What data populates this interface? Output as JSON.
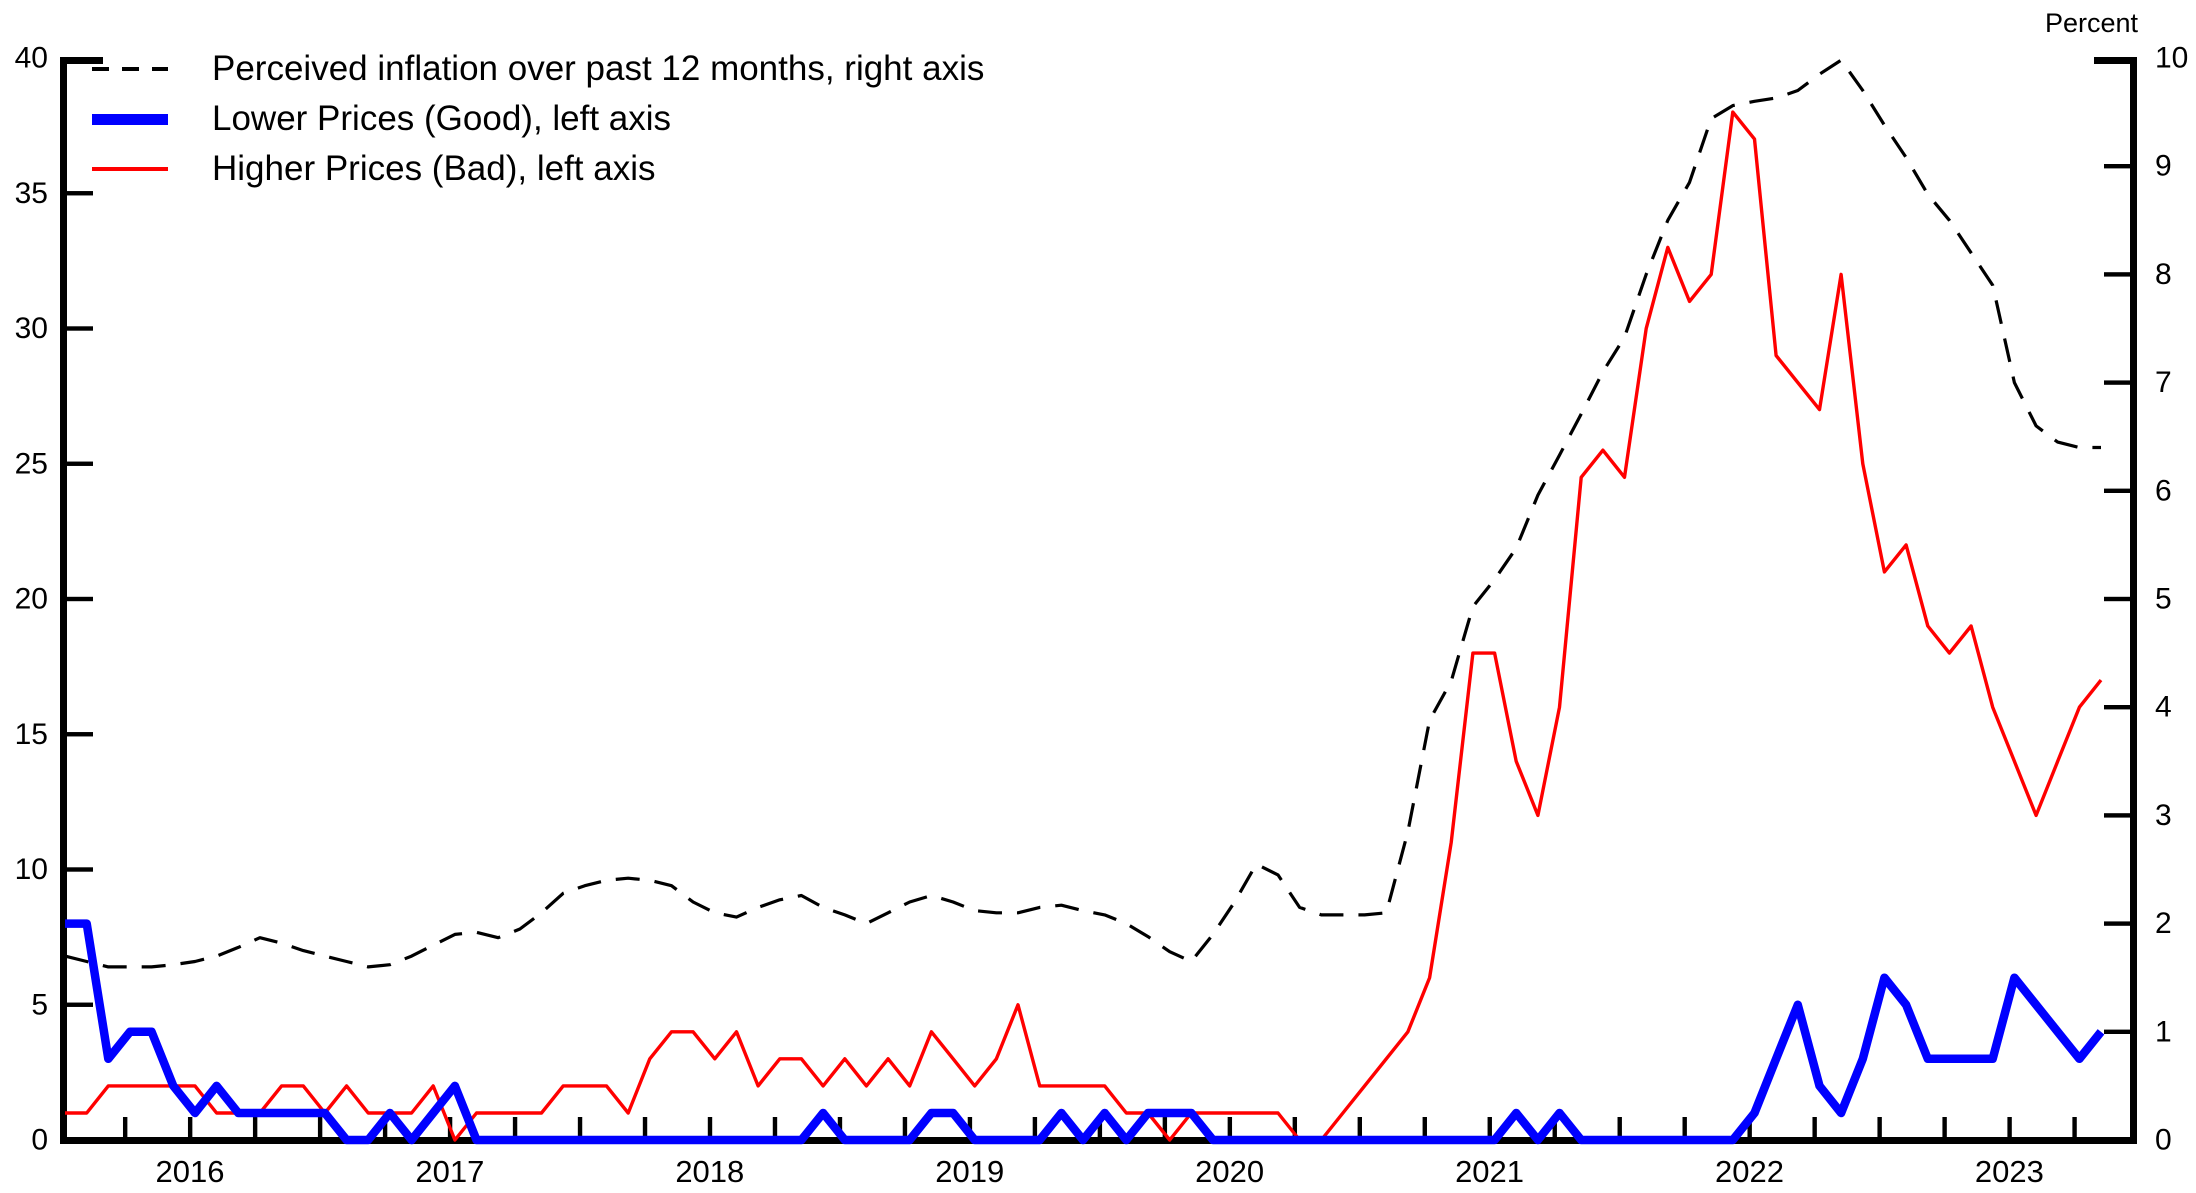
{
  "right_axis_title": "Percent",
  "chart_data": {
    "type": "line",
    "title": "",
    "xlabel": "",
    "ylabel_left": "",
    "ylabel_right": "Percent",
    "grid": false,
    "legend_position": "top-left-inside",
    "x_axis": {
      "year_labels": [
        "2016",
        "2017",
        "2018",
        "2019",
        "2020",
        "2021",
        "2022",
        "2023"
      ],
      "tick_interval": "quarterly"
    },
    "left_axis": {
      "min": 0,
      "max": 40,
      "ticks": [
        0,
        5,
        10,
        15,
        20,
        25,
        30,
        35,
        40
      ]
    },
    "right_axis": {
      "min": 0,
      "max": 10,
      "ticks": [
        0,
        1,
        2,
        3,
        4,
        5,
        6,
        7,
        8,
        9,
        10
      ],
      "title": "Percent"
    },
    "months": [
      "2015-07",
      "2015-08",
      "2015-09",
      "2015-10",
      "2015-11",
      "2015-12",
      "2016-01",
      "2016-02",
      "2016-03",
      "2016-04",
      "2016-05",
      "2016-06",
      "2016-07",
      "2016-08",
      "2016-09",
      "2016-10",
      "2016-11",
      "2016-12",
      "2017-01",
      "2017-02",
      "2017-03",
      "2017-04",
      "2017-05",
      "2017-06",
      "2017-07",
      "2017-08",
      "2017-09",
      "2017-10",
      "2017-11",
      "2017-12",
      "2018-01",
      "2018-02",
      "2018-03",
      "2018-04",
      "2018-05",
      "2018-06",
      "2018-07",
      "2018-08",
      "2018-09",
      "2018-10",
      "2018-11",
      "2018-12",
      "2019-01",
      "2019-02",
      "2019-03",
      "2019-04",
      "2019-05",
      "2019-06",
      "2019-07",
      "2019-08",
      "2019-09",
      "2019-10",
      "2019-11",
      "2019-12",
      "2020-01",
      "2020-02",
      "2020-03",
      "2020-04",
      "2020-05",
      "2020-06",
      "2020-07",
      "2020-08",
      "2020-09",
      "2020-10",
      "2020-11",
      "2020-12",
      "2021-01",
      "2021-02",
      "2021-03",
      "2021-04",
      "2021-05",
      "2021-06",
      "2021-07",
      "2021-08",
      "2021-09",
      "2021-10",
      "2021-11",
      "2021-12",
      "2022-01",
      "2022-02",
      "2022-03",
      "2022-04",
      "2022-05",
      "2022-06",
      "2022-07",
      "2022-08",
      "2022-09",
      "2022-10",
      "2022-11",
      "2022-12",
      "2023-01",
      "2023-02",
      "2023-03",
      "2023-04",
      "2023-05"
    ],
    "series": [
      {
        "name": "Perceived inflation over past 12 months, right axis",
        "axis": "right",
        "color": "#000000",
        "dashed": true,
        "width": 3.2,
        "values": [
          1.7,
          1.65,
          1.6,
          1.6,
          1.6,
          1.62,
          1.65,
          1.7,
          1.78,
          1.87,
          1.82,
          1.75,
          1.7,
          1.65,
          1.6,
          1.62,
          1.7,
          1.8,
          1.9,
          1.92,
          1.87,
          1.95,
          2.1,
          2.28,
          2.35,
          2.4,
          2.42,
          2.4,
          2.35,
          2.2,
          2.1,
          2.06,
          2.15,
          2.22,
          2.26,
          2.15,
          2.08,
          2.0,
          2.1,
          2.2,
          2.26,
          2.2,
          2.12,
          2.1,
          2.1,
          2.15,
          2.17,
          2.12,
          2.08,
          2.0,
          1.88,
          1.74,
          1.65,
          1.9,
          2.2,
          2.55,
          2.45,
          2.15,
          2.08,
          2.08,
          2.08,
          2.1,
          2.85,
          3.88,
          4.24,
          4.93,
          5.18,
          5.47,
          5.96,
          6.33,
          6.71,
          7.1,
          7.42,
          8.0,
          8.5,
          8.85,
          9.44,
          9.56,
          9.6,
          9.63,
          9.7,
          9.85,
          9.98,
          9.7,
          9.38,
          9.08,
          8.74,
          8.5,
          8.2,
          7.9,
          7.0,
          6.6,
          6.45,
          6.4,
          6.4
        ]
      },
      {
        "name": "Lower Prices (Good), left axis",
        "axis": "left",
        "color": "#0000ff",
        "dashed": false,
        "width": 8.5,
        "values": [
          8,
          8,
          3,
          4,
          4,
          2,
          1,
          2,
          1,
          1,
          1,
          1,
          1,
          0,
          0,
          1,
          0,
          1,
          2,
          0,
          0,
          0,
          0,
          0,
          0,
          0,
          0,
          0,
          0,
          0,
          0,
          0,
          0,
          0,
          0,
          1,
          0,
          0,
          0,
          0,
          1,
          1,
          0,
          0,
          0,
          0,
          1,
          0,
          1,
          0,
          1,
          1,
          1,
          0,
          0,
          0,
          0,
          0,
          0,
          0,
          0,
          0,
          0,
          0,
          0,
          0,
          0,
          1,
          0,
          1,
          0,
          0,
          0,
          0,
          0,
          0,
          0,
          0,
          1,
          3,
          5,
          2,
          1,
          3,
          6,
          5,
          3,
          3,
          3,
          3,
          6,
          5,
          4,
          3,
          4
        ]
      },
      {
        "name": "Higher Prices (Bad), left axis",
        "axis": "left",
        "color": "#ff0000",
        "dashed": false,
        "width": 3.4,
        "values": [
          1,
          1,
          2,
          2,
          2,
          2,
          2,
          1,
          1,
          1,
          2,
          2,
          1,
          2,
          1,
          1,
          1,
          2,
          0,
          1,
          1,
          1,
          1,
          2,
          2,
          2,
          1,
          3,
          4,
          4,
          3,
          4,
          2,
          3,
          3,
          2,
          3,
          2,
          3,
          2,
          4,
          3,
          2,
          3,
          5,
          2,
          2,
          2,
          2,
          1,
          1,
          0,
          1,
          1,
          1,
          1,
          1,
          0,
          0,
          1,
          2,
          3,
          4,
          6,
          11,
          18,
          18,
          14,
          12,
          16,
          24.5,
          25.5,
          24.5,
          30,
          33,
          31,
          32,
          38,
          37,
          29,
          28,
          27,
          32,
          25,
          21,
          22,
          19,
          18,
          19,
          16,
          14,
          12,
          14,
          16,
          17
        ]
      }
    ]
  }
}
